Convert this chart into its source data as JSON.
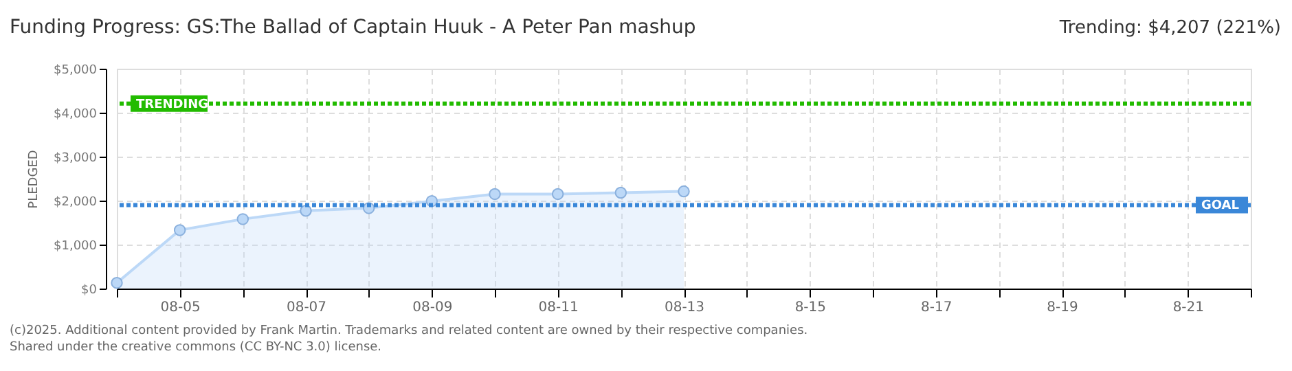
{
  "chart_data": {
    "type": "area",
    "title": "Funding Progress: GS:The Ballad of Captain Huuk - A Peter Pan mashup",
    "ylabel": "PLEDGED",
    "categories": [
      null,
      "08-05",
      null,
      "08-07",
      null,
      "08-09",
      null,
      "08-11",
      null,
      "08-13",
      null,
      "8-15",
      null,
      "8-17",
      null,
      "8-19",
      null,
      "8-21",
      null
    ],
    "series": [
      {
        "color": "#bcd8f7",
        "values": [
          130,
          1330,
          1580,
          1770,
          1830,
          1990,
          2150,
          2150,
          2180,
          2210,
          null,
          null,
          null,
          null,
          null,
          null,
          null,
          null,
          null
        ]
      }
    ],
    "ylim": [
      0,
      5000
    ],
    "yticks": [
      {
        "value": 0,
        "label": "$0"
      },
      {
        "value": 1000,
        "label": "$1,000"
      },
      {
        "value": 2000,
        "label": "$2,000"
      },
      {
        "value": 3000,
        "label": "$3,000"
      },
      {
        "value": 4000,
        "label": "$4,000"
      },
      {
        "value": 5000,
        "label": "$5,000"
      }
    ],
    "ref_lines": [
      {
        "axis": "y",
        "value": 4207,
        "label": "TRENDING",
        "color": "#22bb00",
        "line_style": "dotted"
      },
      {
        "axis": "y",
        "value": 1900,
        "label": "GOAL",
        "color": "#3a87d8",
        "line_style": "dotted"
      }
    ],
    "annotations": [
      "Trending: $4,207 (221%)",
      "(c)2025. Additional content provided by Frank Martin. Trademarks and related content are owned by their respective companies.",
      "Shared under the creative commons (CC BY-NC 3.0) license."
    ],
    "grid": true,
    "marker": "circle"
  }
}
